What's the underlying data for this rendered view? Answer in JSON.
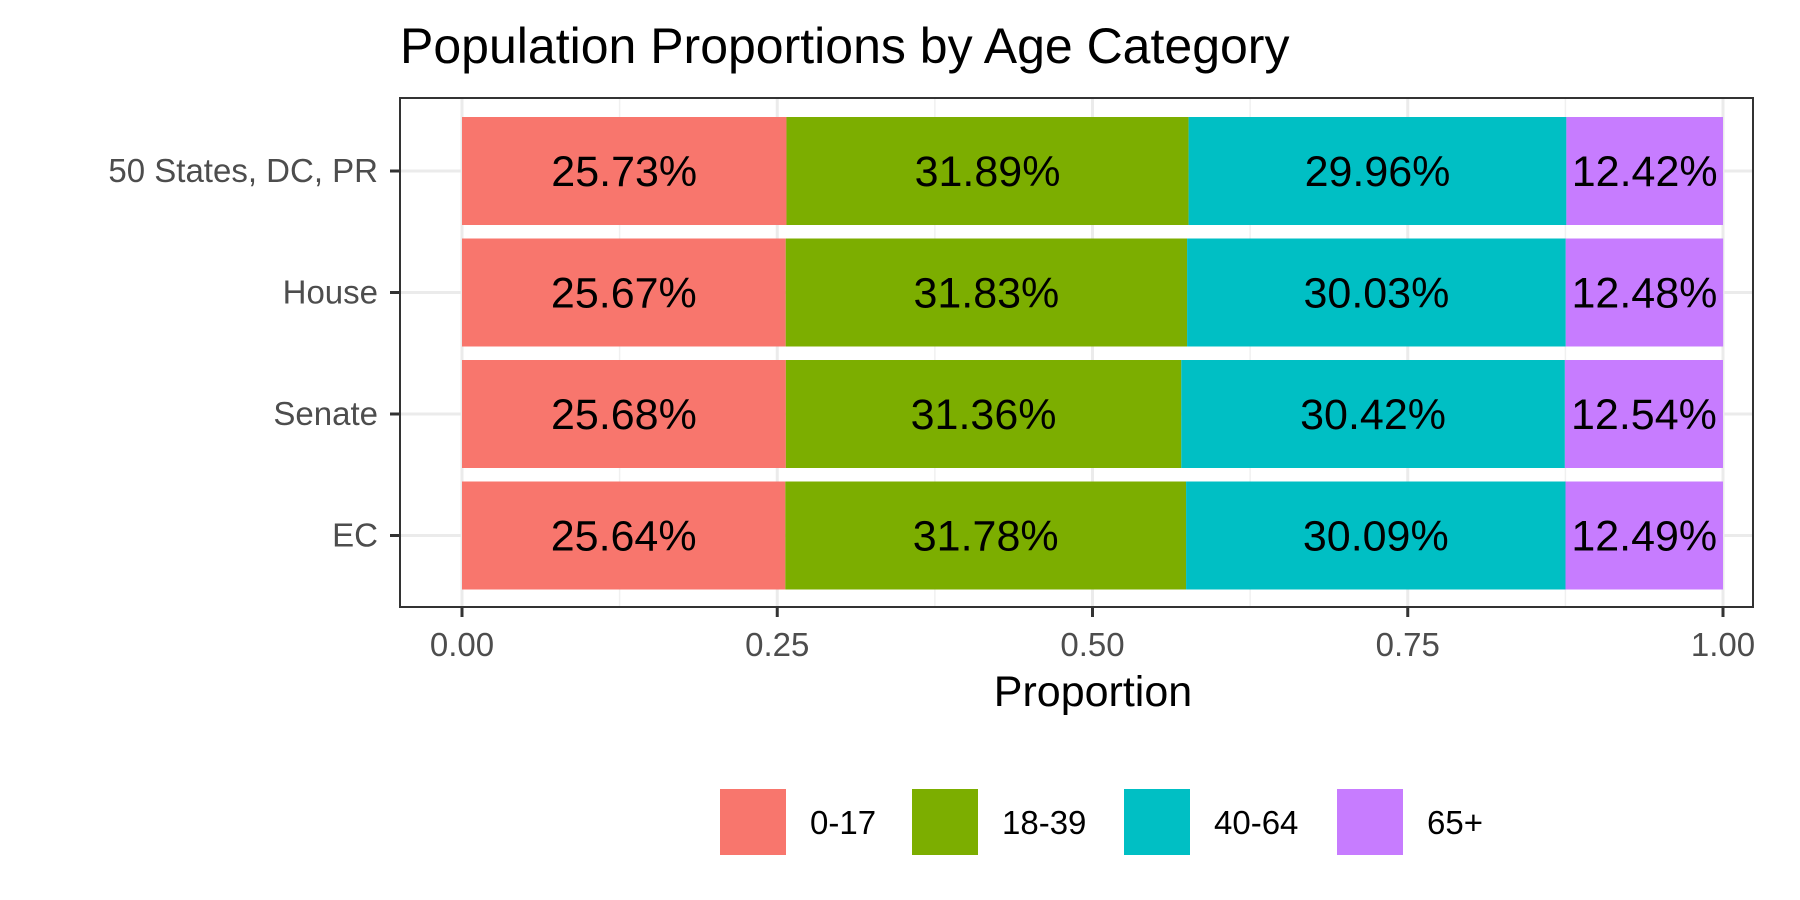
{
  "chart_data": {
    "type": "bar",
    "orientation": "horizontal",
    "stacked": true,
    "title": "Population Proportions by Age Category",
    "xlabel": "Proportion",
    "ylabel": "",
    "xlim": [
      0,
      1
    ],
    "xticks": [
      "0.00",
      "0.25",
      "0.50",
      "0.75",
      "1.00"
    ],
    "categories": [
      "50 States, DC, PR",
      "House",
      "Senate",
      "EC"
    ],
    "series": [
      {
        "name": "0-17",
        "color": "#F8766D",
        "values": [
          0.2573,
          0.2567,
          0.2568,
          0.2564
        ],
        "labels": [
          "25.73%",
          "25.67%",
          "25.68%",
          "25.64%"
        ]
      },
      {
        "name": "18-39",
        "color": "#7CAE00",
        "values": [
          0.3189,
          0.3183,
          0.3136,
          0.3178
        ],
        "labels": [
          "31.89%",
          "31.83%",
          "31.36%",
          "31.78%"
        ]
      },
      {
        "name": "40-64",
        "color": "#00BFC4",
        "values": [
          0.2996,
          0.3003,
          0.3042,
          0.3009
        ],
        "labels": [
          "29.96%",
          "30.03%",
          "30.42%",
          "30.09%"
        ]
      },
      {
        "name": "65+",
        "color": "#C77CFF",
        "values": [
          0.1242,
          0.1248,
          0.1254,
          0.1249
        ],
        "labels": [
          "12.42%",
          "12.48%",
          "12.54%",
          "12.49%"
        ]
      }
    ],
    "grid": true,
    "legend": "bottom"
  }
}
